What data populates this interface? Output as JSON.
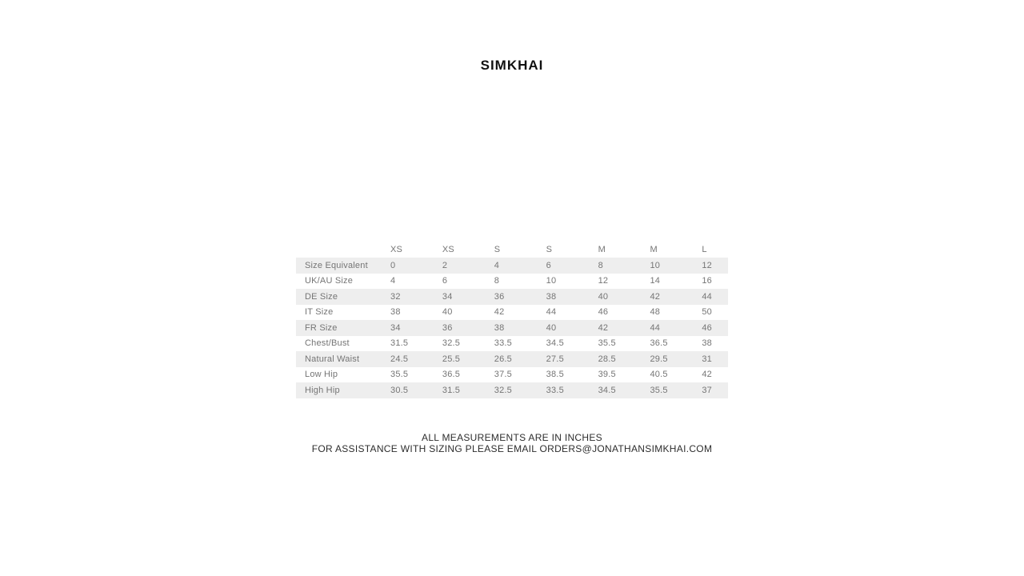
{
  "brand": {
    "title": "SIMKHAI"
  },
  "size_chart": {
    "columns": [
      "",
      "XS",
      "XS",
      "S",
      "S",
      "M",
      "M",
      "L"
    ],
    "rows": [
      {
        "label": "Size Equivalent",
        "values": [
          "0",
          "2",
          "4",
          "6",
          "8",
          "10",
          "12"
        ]
      },
      {
        "label": "UK/AU Size",
        "values": [
          "4",
          "6",
          "8",
          "10",
          "12",
          "14",
          "16"
        ]
      },
      {
        "label": "DE Size",
        "values": [
          "32",
          "34",
          "36",
          "38",
          "40",
          "42",
          "44"
        ]
      },
      {
        "label": "IT Size",
        "values": [
          "38",
          "40",
          "42",
          "44",
          "46",
          "48",
          "50"
        ]
      },
      {
        "label": "FR Size",
        "values": [
          "34",
          "36",
          "38",
          "40",
          "42",
          "44",
          "46"
        ]
      },
      {
        "label": "Chest/Bust",
        "values": [
          "31.5",
          "32.5",
          "33.5",
          "34.5",
          "35.5",
          "36.5",
          "38"
        ]
      },
      {
        "label": "Natural Waist",
        "values": [
          "24.5",
          "25.5",
          "26.5",
          "27.5",
          "28.5",
          "29.5",
          "31"
        ]
      },
      {
        "label": "Low Hip",
        "values": [
          "35.5",
          "36.5",
          "37.5",
          "38.5",
          "39.5",
          "40.5",
          "42"
        ]
      },
      {
        "label": "High Hip",
        "values": [
          "30.5",
          "31.5",
          "32.5",
          "33.5",
          "34.5",
          "35.5",
          "37"
        ]
      }
    ]
  },
  "footer": {
    "line1": "ALL MEASUREMENTS ARE IN INCHES",
    "line2": "FOR ASSISTANCE WITH SIZING PLEASE EMAIL ORDERS@JONATHANSIMKHAI.COM"
  },
  "colors": {
    "row_shade": "#eeeeee",
    "table_text": "#757575",
    "heading_text": "#111111",
    "footer_text": "#2d2d2d",
    "background": "#ffffff"
  }
}
